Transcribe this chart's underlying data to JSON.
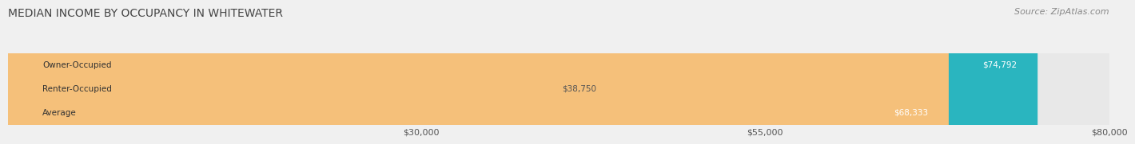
{
  "title": "MEDIAN INCOME BY OCCUPANCY IN WHITEWATER",
  "source": "Source: ZipAtlas.com",
  "categories": [
    "Owner-Occupied",
    "Renter-Occupied",
    "Average"
  ],
  "values": [
    74792,
    38750,
    68333
  ],
  "bar_colors": [
    "#2ab5bf",
    "#c9aed6",
    "#f5c07a"
  ],
  "value_labels": [
    "$74,792",
    "$38,750",
    "$68,333"
  ],
  "xlim": [
    0,
    80000
  ],
  "xticks": [
    30000,
    55000,
    80000
  ],
  "xtick_labels": [
    "$30,000",
    "$55,000",
    "$80,000"
  ],
  "background_color": "#f0f0f0",
  "bar_background_color": "#e8e8e8",
  "title_fontsize": 10,
  "source_fontsize": 8,
  "bar_height": 0.55
}
